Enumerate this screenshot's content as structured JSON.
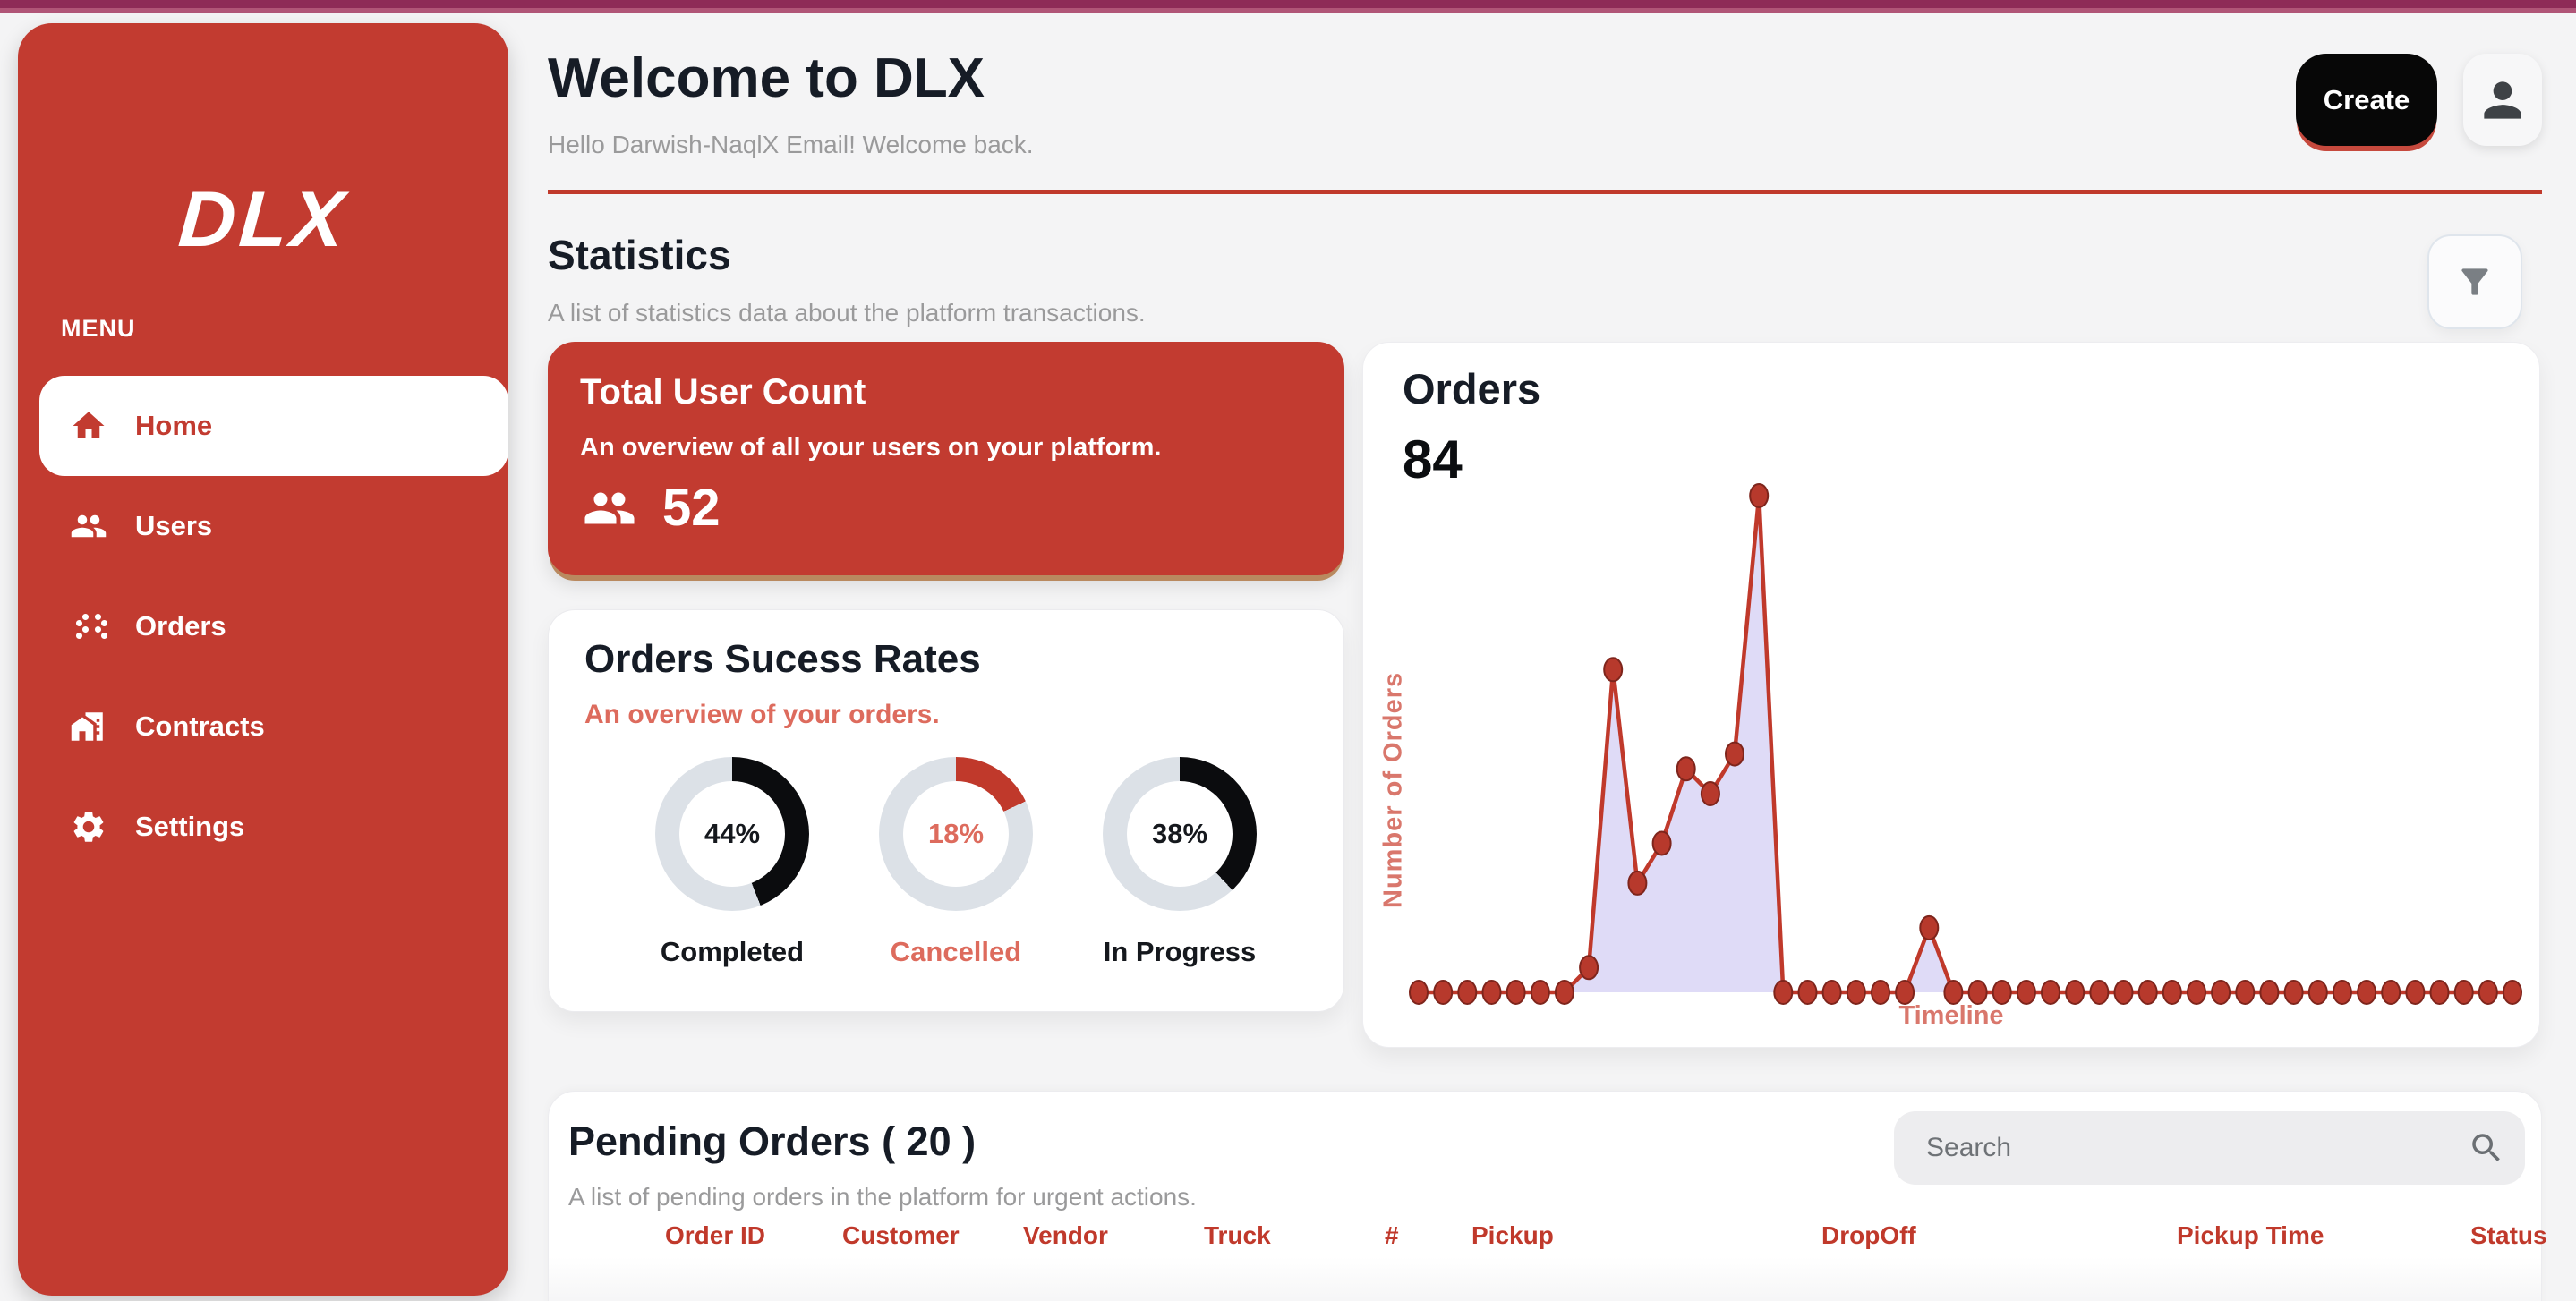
{
  "app": {
    "logo_text": "DLX"
  },
  "topbar": {
    "color_dark": "#8E2B57",
    "color_light": "#B05577"
  },
  "sidebar": {
    "menu_label": "MENU",
    "items": [
      {
        "label": "Home",
        "icon": "home-icon",
        "active": true
      },
      {
        "label": "Users",
        "icon": "users-icon",
        "active": false
      },
      {
        "label": "Orders",
        "icon": "orders-icon",
        "active": false
      },
      {
        "label": "Contracts",
        "icon": "contracts-icon",
        "active": false
      },
      {
        "label": "Settings",
        "icon": "settings-icon",
        "active": false
      }
    ]
  },
  "header": {
    "title": "Welcome to DLX",
    "subtitle": "Hello Darwish-NaqlX Email! Welcome back.",
    "create_button": "Create"
  },
  "statistics": {
    "title": "Statistics",
    "subtitle": "A list of statistics data about the platform transactions.",
    "accent_color": "#C0392B",
    "total_users": {
      "title": "Total User Count",
      "subtitle": "An overview of all your users on your platform.",
      "count": "52"
    },
    "success_rates": {
      "title": "Orders Sucess Rates",
      "subtitle": "An overview of your orders.",
      "track_color": "#DCE1E7",
      "items": [
        {
          "label": "Completed",
          "value": 44,
          "value_label": "44%",
          "arc_color": "#0B0C0E",
          "text_color": "#15181D"
        },
        {
          "label": "Cancelled",
          "value": 18,
          "value_label": "18%",
          "arc_color": "#C0392B",
          "text_color": "#DD6B5D"
        },
        {
          "label": "In Progress",
          "value": 38,
          "value_label": "38%",
          "arc_color": "#0B0C0E",
          "text_color": "#15181D"
        }
      ]
    }
  },
  "chart_data": {
    "type": "area",
    "title": "Orders",
    "total_label": "84",
    "xlabel": "Timeline",
    "ylabel": "Number of Orders",
    "axis_tick_labels_visible": false,
    "grid": false,
    "ylim": [
      0,
      100
    ],
    "values": [
      0,
      0,
      0,
      0,
      0,
      0,
      0,
      5,
      65,
      22,
      30,
      45,
      40,
      48,
      100,
      0,
      0,
      0,
      0,
      0,
      0,
      13,
      0,
      0,
      0,
      0,
      0,
      0,
      0,
      0,
      0,
      0,
      0,
      0,
      0,
      0,
      0,
      0,
      0,
      0,
      0,
      0,
      0,
      0,
      0,
      0
    ],
    "line_color": "#C0392B",
    "marker_fill": "#B7392C",
    "marker_stroke": "#7E251C",
    "area_fill": "#DBD7F6"
  },
  "pending": {
    "title": "Pending Orders  ( 20 )",
    "subtitle": "A list of pending orders in the platform for urgent actions.",
    "search_placeholder": "Search",
    "columns": [
      "Order ID",
      "Customer",
      "Vendor",
      "Truck",
      "#",
      "Pickup",
      "DropOff",
      "Pickup Time",
      "Status"
    ]
  }
}
